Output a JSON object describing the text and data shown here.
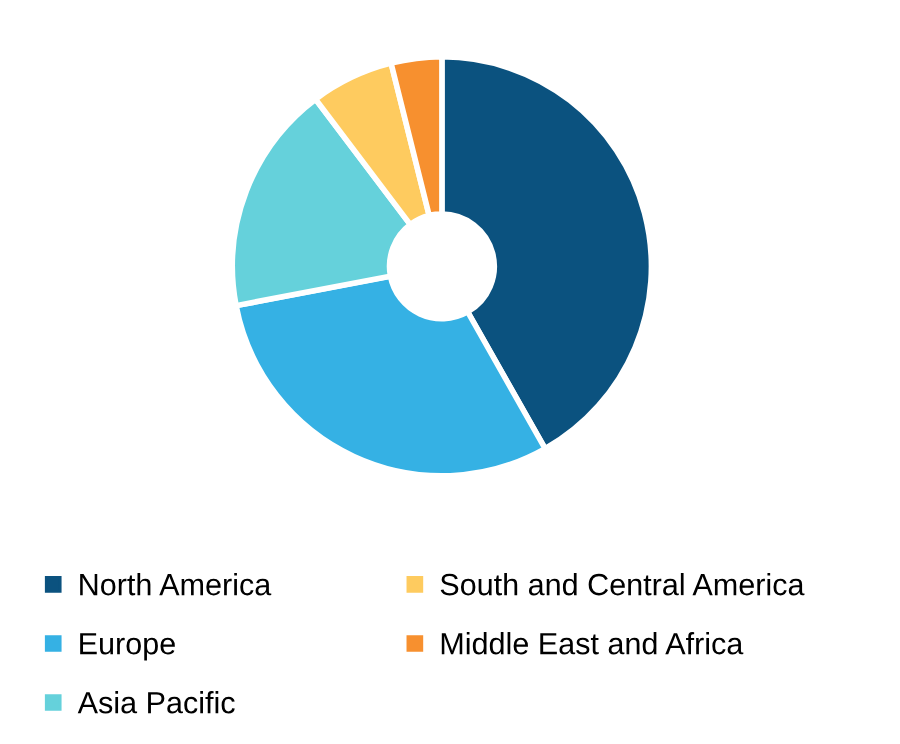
{
  "chart_data": {
    "type": "donut",
    "categories": [
      "North America",
      "Europe",
      "Asia Pacific",
      "South and Central America",
      "Middle East and Africa"
    ],
    "values": [
      41.8,
      30.2,
      17.7,
      6.4,
      3.9
    ],
    "colors": [
      "#0b527f",
      "#35b1e4",
      "#65d1db",
      "#fecb5f",
      "#f7902f"
    ],
    "legend": "bottom"
  }
}
